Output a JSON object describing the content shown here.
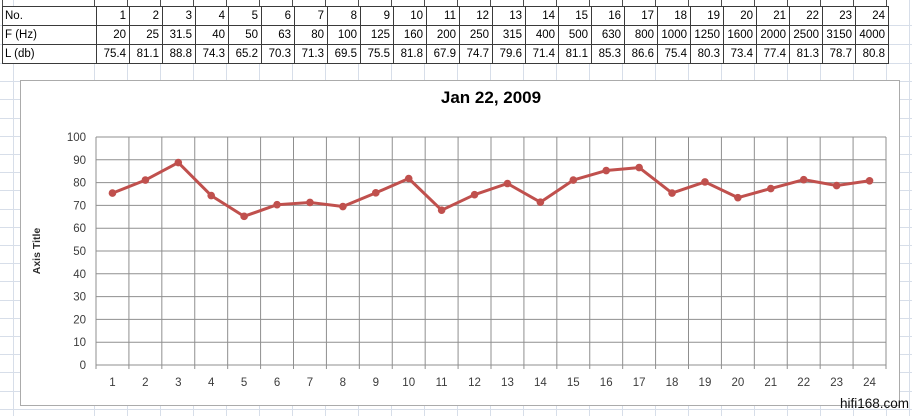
{
  "table": {
    "rows": [
      {
        "label": "No.",
        "values": [
          "1",
          "2",
          "3",
          "4",
          "5",
          "6",
          "7",
          "8",
          "9",
          "10",
          "11",
          "12",
          "13",
          "14",
          "15",
          "16",
          "17",
          "18",
          "19",
          "20",
          "21",
          "22",
          "23",
          "24"
        ]
      },
      {
        "label": "F (Hz)",
        "values": [
          "20",
          "25",
          "31.5",
          "40",
          "50",
          "63",
          "80",
          "100",
          "125",
          "160",
          "200",
          "250",
          "315",
          "400",
          "500",
          "630",
          "800",
          "1000",
          "1250",
          "1600",
          "2000",
          "2500",
          "3150",
          "4000"
        ]
      },
      {
        "label": "L (db)",
        "values": [
          "75.4",
          "81.1",
          "88.8",
          "74.3",
          "65.2",
          "70.3",
          "71.3",
          "69.5",
          "75.5",
          "81.8",
          "67.9",
          "74.7",
          "79.6",
          "71.4",
          "81.1",
          "85.3",
          "86.6",
          "75.4",
          "80.3",
          "73.4",
          "77.4",
          "81.3",
          "78.7",
          "80.8"
        ]
      }
    ]
  },
  "chart_data": {
    "type": "line",
    "title": "Jan 22, 2009",
    "xlabel": "",
    "ylabel": "Axis Title",
    "categories": [
      1,
      2,
      3,
      4,
      5,
      6,
      7,
      8,
      9,
      10,
      11,
      12,
      13,
      14,
      15,
      16,
      17,
      18,
      19,
      20,
      21,
      22,
      23,
      24
    ],
    "series": [
      {
        "name": "L (db)",
        "values": [
          75.4,
          81.1,
          88.8,
          74.3,
          65.2,
          70.3,
          71.3,
          69.5,
          75.5,
          81.8,
          67.9,
          74.7,
          79.6,
          71.4,
          81.1,
          85.3,
          86.6,
          75.4,
          80.3,
          73.4,
          77.4,
          81.3,
          78.7,
          80.8
        ]
      }
    ],
    "ylim": [
      0,
      100
    ],
    "ytick_step": 10,
    "grid": true,
    "legend": false,
    "marker": "circle"
  },
  "watermark": "hifi168.com",
  "colors": {
    "series_line": "#c0504d",
    "chart_grid": "#8f8f8f",
    "sheet_grid": "#d7dee9",
    "table_border": "#3a3a3a",
    "chart_border": "#ababab",
    "axis_text": "#3c3c3c",
    "title_text": "#000000"
  }
}
